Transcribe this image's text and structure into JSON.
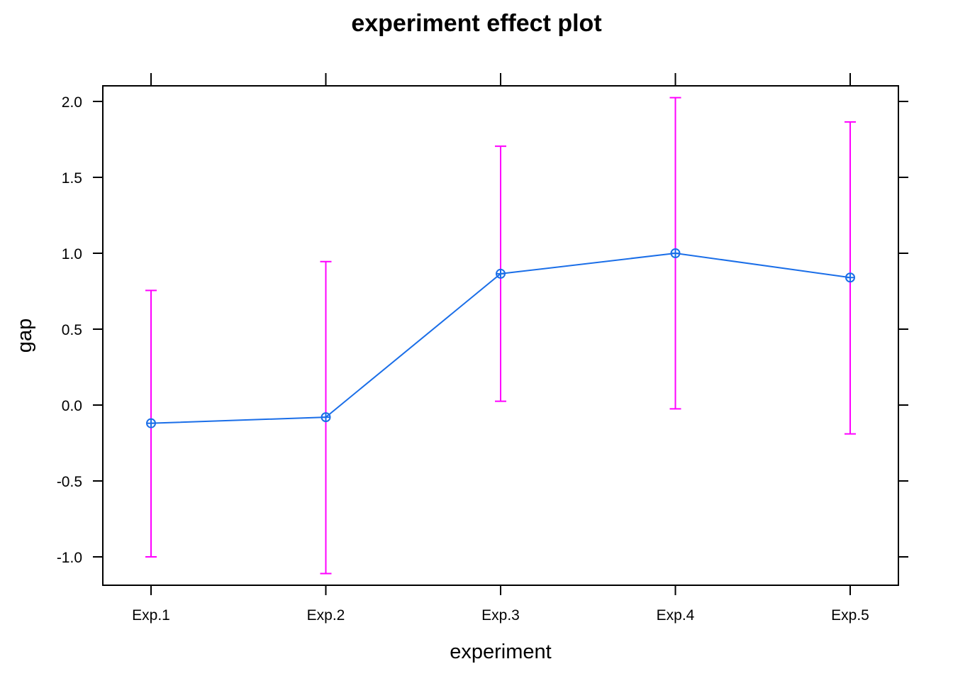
{
  "chart_data": {
    "type": "line",
    "title": "experiment effect plot",
    "xlabel": "experiment",
    "ylabel": "gap",
    "categories": [
      "Exp.1",
      "Exp.2",
      "Exp.3",
      "Exp.4",
      "Exp.5"
    ],
    "series": [
      {
        "values": [
          -0.12,
          -0.08,
          0.865,
          1.0,
          0.84
        ],
        "lower": [
          -1.0,
          -1.11,
          0.025,
          -0.025,
          -0.19
        ],
        "upper": [
          0.755,
          0.945,
          1.705,
          2.025,
          1.865
        ]
      }
    ],
    "ylim": [
      -1.18,
      2.1
    ],
    "yticks": [
      -1.0,
      -0.5,
      0.0,
      0.5,
      1.0,
      1.5,
      2.0
    ],
    "ytick_labels": [
      "-1.0",
      "-0.5",
      "0.0",
      "0.5",
      "1.0",
      "1.5",
      "2.0"
    ],
    "grid": false,
    "colors": {
      "line": "#1a6ee8",
      "ci": "#ff00ff",
      "frame": "#000000"
    }
  }
}
